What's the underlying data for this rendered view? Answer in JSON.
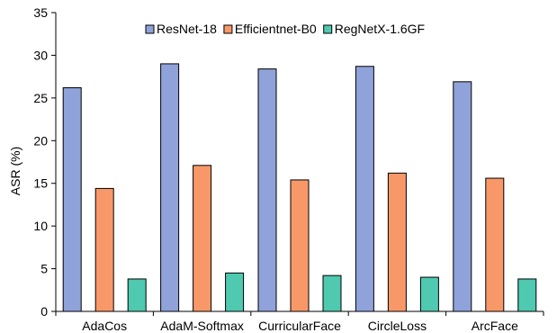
{
  "chart_data": {
    "type": "bar",
    "title": "",
    "xlabel": "",
    "ylabel": "ASR (%)",
    "ylim": [
      0,
      35
    ],
    "yticks": [
      0,
      5,
      10,
      15,
      20,
      25,
      30,
      35
    ],
    "grid": false,
    "legend_position": "top-right",
    "categories": [
      "AdaCos",
      "AdaM-Softmax",
      "CurricularFace",
      "CircleLoss",
      "ArcFace"
    ],
    "series": [
      {
        "name": "ResNet-18",
        "color": "#8FA2D9",
        "values": [
          26.2,
          29.0,
          28.4,
          28.7,
          26.9
        ]
      },
      {
        "name": "Efficientnet-B0",
        "color": "#F89868",
        "values": [
          14.4,
          17.1,
          15.4,
          16.2,
          15.6
        ]
      },
      {
        "name": "RegNetX-1.6GF",
        "color": "#4FC9B0",
        "values": [
          3.8,
          4.5,
          4.2,
          4.0,
          3.8
        ]
      }
    ]
  }
}
